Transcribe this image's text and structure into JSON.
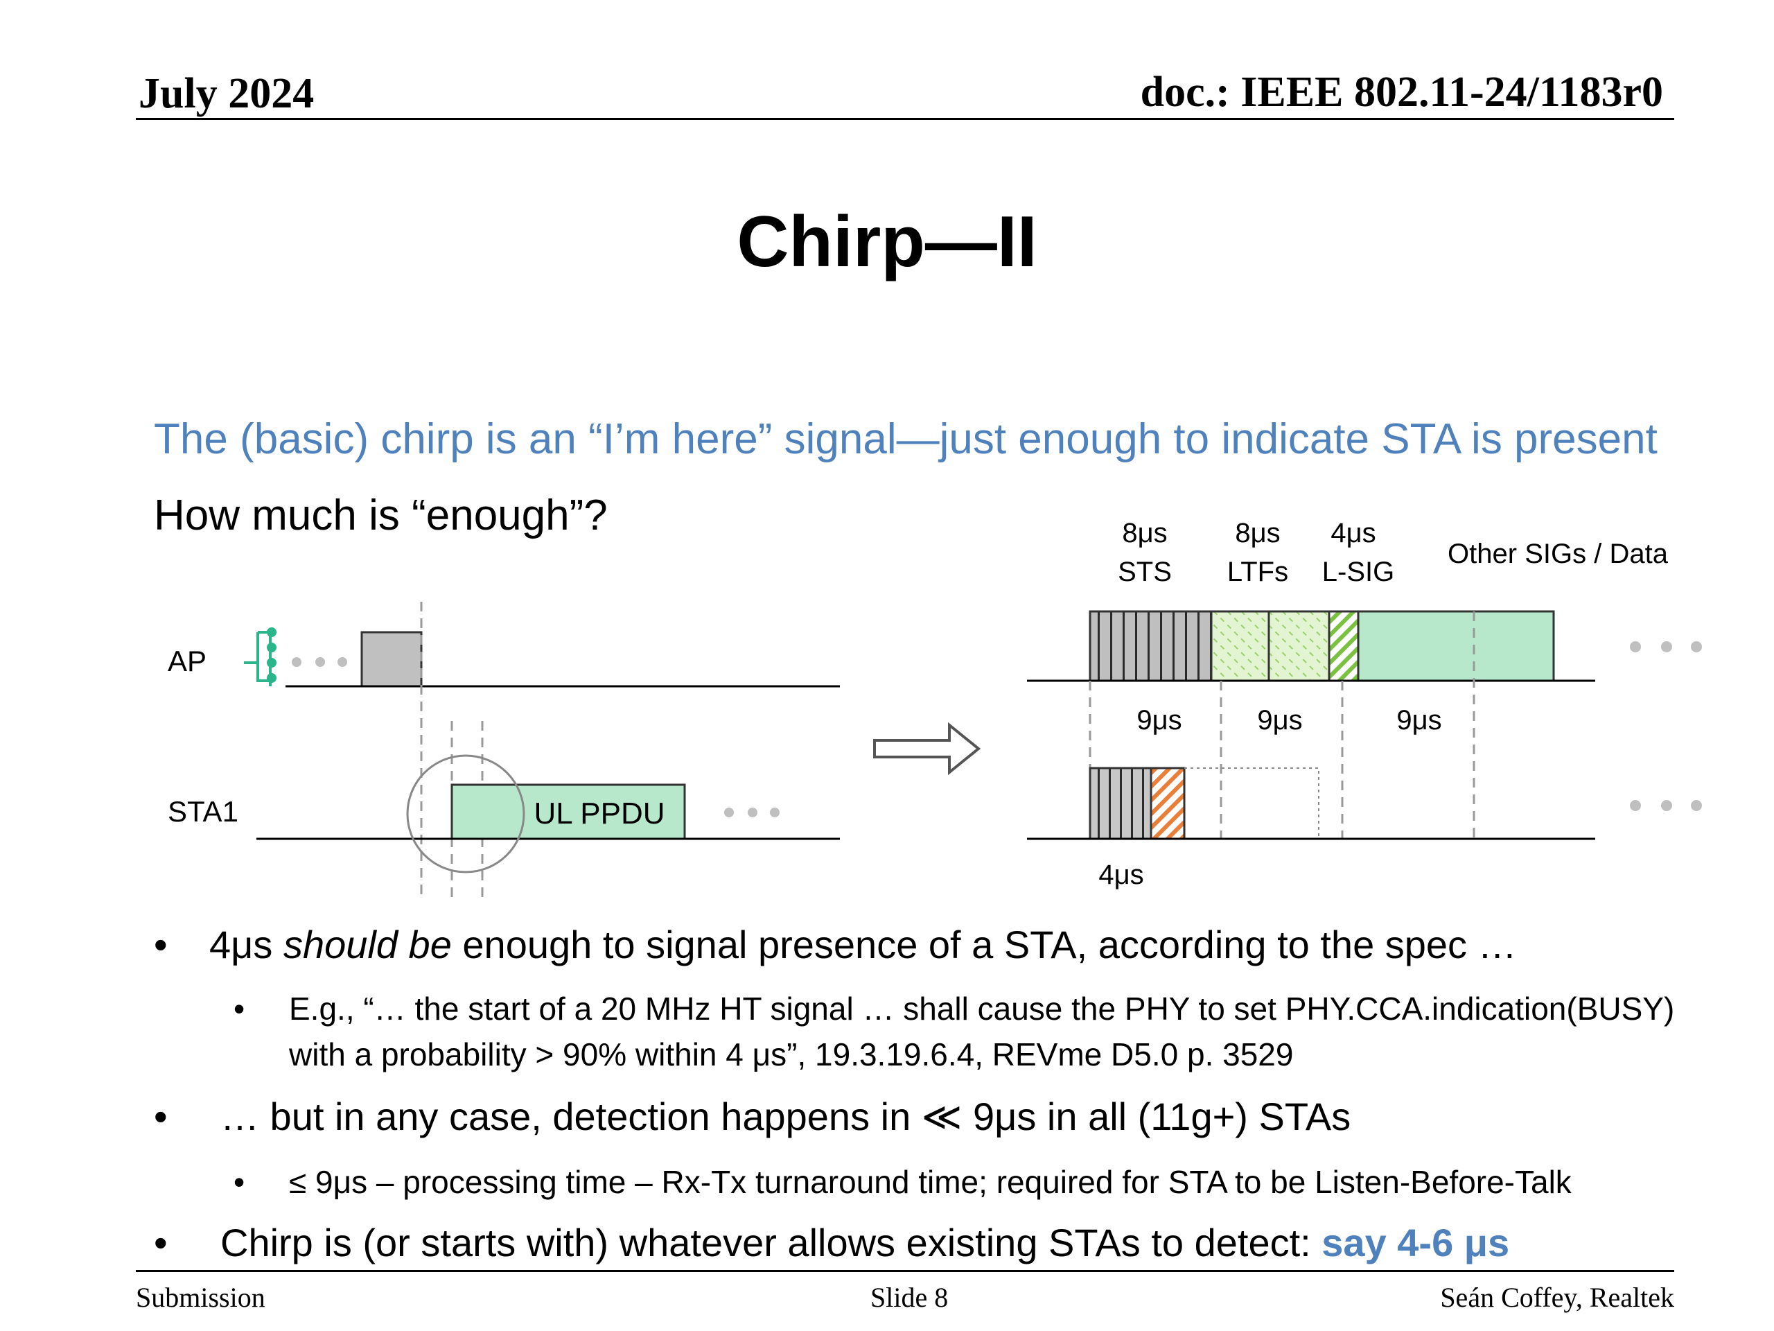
{
  "header": {
    "date": "July 2024",
    "doc": "doc.: IEEE 802.11-24/1183r0"
  },
  "title": "Chirp—II",
  "lead": {
    "line1": "The (basic) chirp is an “I’m here” signal—just enough to indicate STA is present",
    "line2": "How much is “enough”?"
  },
  "diagram": {
    "ap_label": "AP",
    "sta_label": "STA1",
    "ul_label": "UL PPDU",
    "fields": [
      {
        "dur": "8μs",
        "name": "STS"
      },
      {
        "dur": "8μs",
        "name": "LTFs"
      },
      {
        "dur": "4μs",
        "name": "L-SIG"
      }
    ],
    "other_label": "Other SIGs / Data",
    "slot_labels": [
      "9μs",
      "9μs",
      "9μs"
    ],
    "chirp_label": "4μs",
    "colors": {
      "green_fill": "#b8e8cc",
      "gray_fill": "#c0c0c0",
      "orange_hatch": "#e8803a",
      "green_hatch": "#7ac142",
      "ap_icon": "#2bb58a"
    }
  },
  "bullets": [
    {
      "pre": "4μs ",
      "em": "should be",
      "post": " enough to signal presence of a STA, according to the spec …"
    },
    {
      "line1": "E.g., “…  the start of a 20 MHz HT signal … shall cause the PHY to set PHY.CCA.indication(BUSY)",
      "line2": "with a probability > 90% within 4 μs”, 19.3.19.6.4, REVme D5.0 p. 3529"
    },
    {
      "text": "… but in any case, detection happens in ≪ 9μs in all (11g+) STAs"
    },
    {
      "text": "≤ 9μs – processing time – Rx-Tx turnaround time; required for STA to be Listen-Before-Talk"
    },
    {
      "text": "Chirp is (or starts with) whatever allows existing STAs to detect: ",
      "highlight": "say 4-6 μs"
    }
  ],
  "bullet_char": "•",
  "footer": {
    "left": "Submission",
    "center": "Slide 8",
    "right": "Seán Coffey, Realtek"
  }
}
